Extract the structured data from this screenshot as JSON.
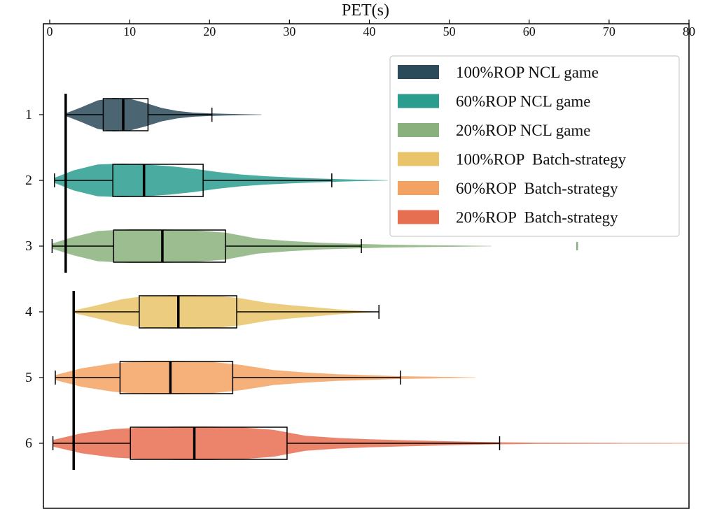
{
  "chart_data": {
    "type": "violin",
    "xlabel": "PET(s)",
    "ylabel": "",
    "xlim": [
      0,
      80
    ],
    "xticks": [
      0,
      10,
      20,
      30,
      40,
      50,
      60,
      70,
      80
    ],
    "x_axis_position": "top",
    "categories": [
      "1",
      "2",
      "3",
      "4",
      "5",
      "6"
    ],
    "legend_position": "top-right",
    "grid": false,
    "series": [
      {
        "name": "100%ROP NCL game",
        "color": "#2b4a5a",
        "min": 2,
        "q1": 6.7,
        "median": 9.2,
        "q3": 12.3,
        "whisker_high": 20.3,
        "violin_max": 26.5,
        "density": [
          [
            2,
            0.08
          ],
          [
            4,
            0.45
          ],
          [
            6,
            0.85
          ],
          [
            8,
            1.0
          ],
          [
            10,
            0.95
          ],
          [
            12,
            0.7
          ],
          [
            14,
            0.4
          ],
          [
            16,
            0.22
          ],
          [
            18,
            0.12
          ],
          [
            20,
            0.08
          ],
          [
            22,
            0.05
          ],
          [
            24,
            0.03
          ],
          [
            26.5,
            0.01
          ]
        ]
      },
      {
        "name": "60%ROP NCL game",
        "color": "#2a9d8f",
        "min": 0.6,
        "q1": 7.9,
        "median": 11.8,
        "q3": 19.2,
        "whisker_high": 35.3,
        "violin_max": 42.3,
        "density": [
          [
            0.6,
            0.15
          ],
          [
            3,
            0.6
          ],
          [
            6,
            0.95
          ],
          [
            9,
            1.0
          ],
          [
            12,
            0.95
          ],
          [
            15,
            0.85
          ],
          [
            18,
            0.7
          ],
          [
            21,
            0.5
          ],
          [
            24,
            0.35
          ],
          [
            27,
            0.25
          ],
          [
            30,
            0.18
          ],
          [
            33,
            0.12
          ],
          [
            36,
            0.08
          ],
          [
            39,
            0.04
          ],
          [
            42.3,
            0.01
          ]
        ]
      },
      {
        "name": "20%ROP NCL game",
        "color": "#8ab17d",
        "min": 0.3,
        "q1": 8,
        "median": 14.1,
        "q3": 22,
        "whisker_high": 39,
        "violin_max": 55.3,
        "density": [
          [
            0.3,
            0.15
          ],
          [
            3,
            0.55
          ],
          [
            6,
            0.9
          ],
          [
            10,
            1.0
          ],
          [
            14,
            1.0
          ],
          [
            18,
            0.95
          ],
          [
            22,
            0.8
          ],
          [
            26,
            0.45
          ],
          [
            30,
            0.3
          ],
          [
            34,
            0.2
          ],
          [
            38,
            0.14
          ],
          [
            42,
            0.09
          ],
          [
            46,
            0.06
          ],
          [
            50,
            0.04
          ],
          [
            55.3,
            0.01
          ]
        ],
        "outliers": [
          66
        ]
      },
      {
        "name": "100%ROP  Batch-strategy",
        "color": "#e9c46a",
        "min": 3,
        "q1": 11.2,
        "median": 16.1,
        "q3": 23.4,
        "whisker_high": 41.2,
        "violin_max": 41.2,
        "density": [
          [
            3,
            0.08
          ],
          [
            6,
            0.4
          ],
          [
            9,
            0.75
          ],
          [
            12,
            0.95
          ],
          [
            15,
            1.0
          ],
          [
            18,
            1.0
          ],
          [
            21,
            0.95
          ],
          [
            24,
            0.8
          ],
          [
            27,
            0.55
          ],
          [
            30,
            0.4
          ],
          [
            33,
            0.28
          ],
          [
            36,
            0.15
          ],
          [
            39,
            0.06
          ],
          [
            41.2,
            0.01
          ]
        ]
      },
      {
        "name": "60%ROP  Batch-strategy",
        "color": "#f4a261",
        "min": 0.7,
        "q1": 8.8,
        "median": 15.1,
        "q3": 22.9,
        "whisker_high": 43.9,
        "violin_max": 53.3,
        "density": [
          [
            0.7,
            0.15
          ],
          [
            4,
            0.55
          ],
          [
            8,
            0.85
          ],
          [
            12,
            1.0
          ],
          [
            16,
            1.0
          ],
          [
            20,
            0.95
          ],
          [
            24,
            0.75
          ],
          [
            28,
            0.45
          ],
          [
            32,
            0.3
          ],
          [
            36,
            0.2
          ],
          [
            40,
            0.14
          ],
          [
            44,
            0.08
          ],
          [
            48,
            0.05
          ],
          [
            53.3,
            0.01
          ]
        ]
      },
      {
        "name": "20%ROP  Batch-strategy",
        "color": "#e76f51",
        "min": 0.4,
        "q1": 10.1,
        "median": 18.1,
        "q3": 29.7,
        "whisker_high": 56.3,
        "violin_max": 80,
        "density": [
          [
            0.4,
            0.2
          ],
          [
            4,
            0.6
          ],
          [
            8,
            0.85
          ],
          [
            12,
            0.95
          ],
          [
            16,
            1.0
          ],
          [
            20,
            1.0
          ],
          [
            24,
            0.95
          ],
          [
            28,
            0.8
          ],
          [
            32,
            0.45
          ],
          [
            36,
            0.32
          ],
          [
            40,
            0.24
          ],
          [
            44,
            0.19
          ],
          [
            48,
            0.14
          ],
          [
            52,
            0.1
          ],
          [
            56,
            0.06
          ],
          [
            60,
            0.04
          ],
          [
            65,
            0.03
          ],
          [
            70,
            0.025
          ],
          [
            75,
            0.02
          ],
          [
            80,
            0.015
          ]
        ]
      }
    ],
    "reference_lines": [
      {
        "x": 2,
        "from_category": "1",
        "to_category": "3"
      },
      {
        "x": 3,
        "from_category": "4",
        "to_category": "6"
      }
    ]
  }
}
